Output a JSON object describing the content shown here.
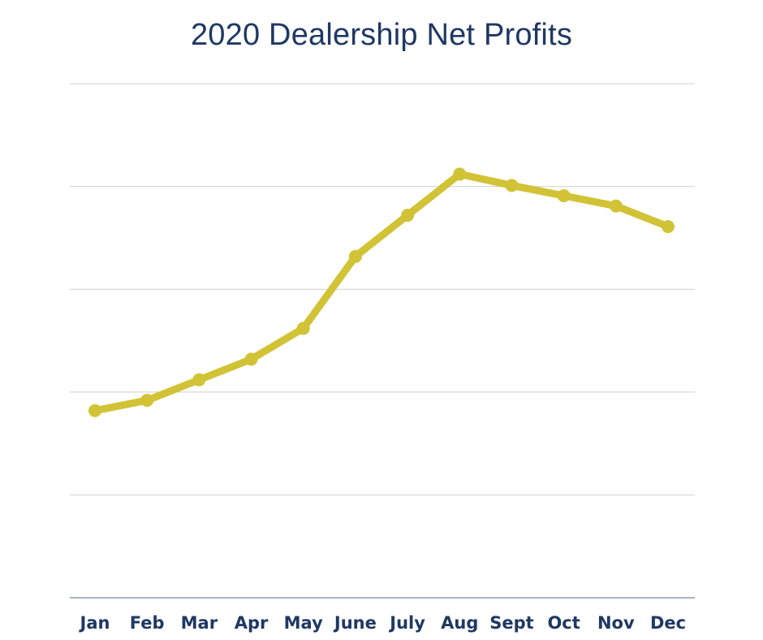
{
  "chart_data": {
    "type": "line",
    "title": "2020 Dealership Net Profits",
    "xlabel": "",
    "ylabel": "",
    "categories": [
      "Jan",
      "Feb",
      "Mar",
      "Apr",
      "May",
      "June",
      "July",
      "Aug",
      "Sept",
      "Oct",
      "Nov",
      "Dec"
    ],
    "series": [
      {
        "values": [
          1.82,
          1.92,
          2.12,
          2.32,
          2.62,
          3.32,
          3.72,
          4.12,
          4.01,
          3.91,
          3.81,
          3.61
        ]
      }
    ],
    "ylim": [
      0,
      5
    ],
    "y_tick_labels_visible": false,
    "grid": true,
    "legend": "none",
    "line_color": "#d1c335",
    "title_color": "#1f3864",
    "grid_color": "#d0d0d0",
    "axis_color": "#8a9bb0"
  }
}
